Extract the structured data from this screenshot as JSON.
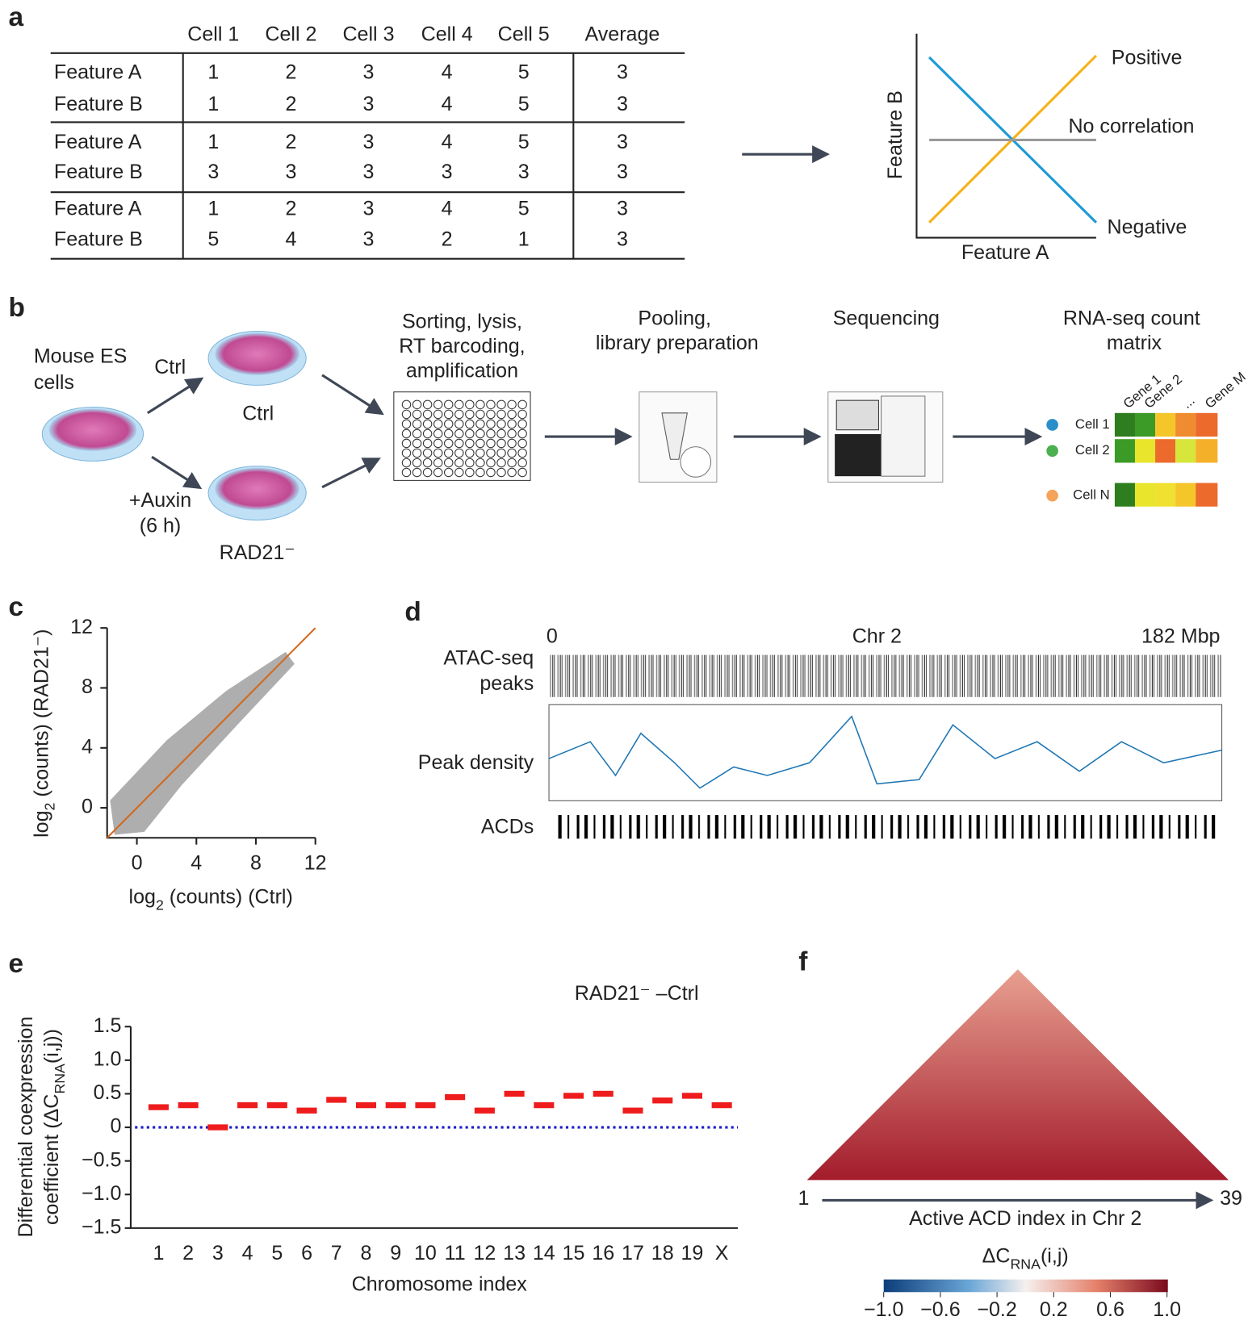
{
  "panels": {
    "a": {
      "label": "a",
      "table": {
        "columns": [
          "Cell 1",
          "Cell 2",
          "Cell 3",
          "Cell 4",
          "Cell 5",
          "Average"
        ],
        "groups": [
          {
            "rows": [
              {
                "feature": "Feature A",
                "values": [
                  1,
                  2,
                  3,
                  4,
                  5,
                  3
                ]
              },
              {
                "feature": "Feature B",
                "values": [
                  1,
                  2,
                  3,
                  4,
                  5,
                  3
                ]
              }
            ]
          },
          {
            "rows": [
              {
                "feature": "Feature A",
                "values": [
                  1,
                  2,
                  3,
                  4,
                  5,
                  3
                ]
              },
              {
                "feature": "Feature B",
                "values": [
                  3,
                  3,
                  3,
                  3,
                  3,
                  3
                ]
              }
            ]
          },
          {
            "rows": [
              {
                "feature": "Feature A",
                "values": [
                  1,
                  2,
                  3,
                  4,
                  5,
                  3
                ]
              },
              {
                "feature": "Feature B",
                "values": [
                  5,
                  4,
                  3,
                  2,
                  1,
                  3
                ]
              }
            ]
          }
        ]
      },
      "plot": {
        "y_label": "Feature B",
        "x_label": "Feature A",
        "positive": "Positive",
        "none": "No correlation",
        "negative": "Negative"
      }
    },
    "b": {
      "label": "b",
      "source": [
        "Mouse ES",
        "cells"
      ],
      "ctrl_arrow": "Ctrl",
      "ctrl_dish": "Ctrl",
      "auxin": [
        "+Auxin",
        "(6 h)"
      ],
      "rad21": "RAD21⁻",
      "sorting": [
        "Sorting, lysis,",
        "RT barcoding,",
        "amplification"
      ],
      "pooling": [
        "Pooling,",
        "library preparation"
      ],
      "sequencing": "Sequencing",
      "matrix_title": [
        "RNA-seq count",
        "matrix"
      ],
      "genes": [
        "Gene 1",
        "Gene 2",
        "...",
        "Gene M"
      ],
      "cells": [
        "Cell 1",
        "Cell 2",
        "Cell N"
      ]
    },
    "c": {
      "label": "c",
      "type": "scatter",
      "x_label": [
        "log",
        "2",
        " (counts) (Ctrl)"
      ],
      "y_label": [
        "log",
        "2",
        " (counts) (RAD21⁻)"
      ],
      "xlim": [
        -2,
        12
      ],
      "ylim": [
        -2,
        12
      ],
      "xticks": [
        0,
        4,
        8,
        12
      ],
      "yticks": [
        0,
        4,
        8,
        12
      ],
      "line_color": "#d2691e",
      "point_color": "#9a9a9a"
    },
    "d": {
      "label": "d",
      "start": "0",
      "chromosome": "Chr 2",
      "end": "182 Mbp",
      "atac": [
        "ATAC-seq",
        "peaks"
      ],
      "density": "Peak density",
      "acds": "ACDs"
    },
    "e": {
      "label": "e",
      "type": "dot",
      "title": "RAD21⁻ –Ctrl",
      "y_label": [
        "Differential coexpression",
        "coefficient (ΔC",
        "RNA",
        "(i,j))"
      ],
      "x_label": "Chromosome index",
      "categories": [
        "1",
        "2",
        "3",
        "4",
        "5",
        "6",
        "7",
        "8",
        "9",
        "10",
        "11",
        "12",
        "13",
        "14",
        "15",
        "16",
        "17",
        "18",
        "19",
        "X"
      ],
      "medians": [
        0.3,
        0.33,
        0,
        0.33,
        0.33,
        0.25,
        0.41,
        0.33,
        0.33,
        0.33,
        0.45,
        0.25,
        0.5,
        0.33,
        0.47,
        0.5,
        0.25,
        0.4,
        0.47,
        0.33
      ],
      "median_color": "#ee1c1c",
      "zero_color": "#1a1acc",
      "ylim": [
        -1.5,
        1.5
      ],
      "yticks": [
        {
          "value": 1.5,
          "label": "1.5"
        },
        {
          "value": 1.0,
          "label": "1.0"
        },
        {
          "value": 0.5,
          "label": "0.5"
        },
        0,
        {
          "value": -0.5,
          "label": "−0.5"
        },
        {
          "value": -1.0,
          "label": "−1.0"
        },
        {
          "value": -1.5,
          "label": "−1.5"
        }
      ]
    },
    "f": {
      "label": "f",
      "start": "1",
      "end": "39",
      "x_label": "Active ACD index in Chr 2",
      "colorbar_label": [
        "ΔC",
        "RNA",
        "(i,j)"
      ],
      "clim": [
        -1,
        1
      ],
      "cticks": [
        {
          "value": -1.0,
          "label": "−1.0"
        },
        {
          "value": -0.6,
          "label": "−0.6"
        },
        {
          "value": -0.2,
          "label": "−0.2"
        },
        0.2,
        0.6,
        {
          "value": 1.0,
          "label": "1.0"
        }
      ]
    }
  }
}
